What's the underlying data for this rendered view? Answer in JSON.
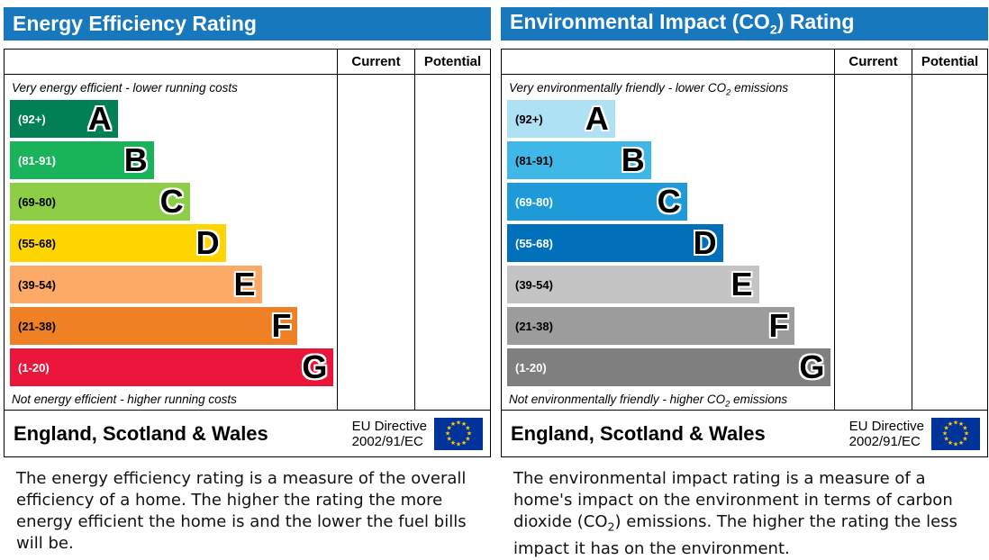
{
  "colors": {
    "header_bg": "#1878be",
    "border": "#000000",
    "flag_bg": "#003399",
    "flag_stars": "#ffcc00"
  },
  "chart_data": [
    {
      "type": "bar",
      "orientation": "horizontal",
      "title": "Energy Efficiency Rating",
      "columns": [
        "Current",
        "Potential"
      ],
      "current_value": "",
      "potential_value": "",
      "top_caption": "Very energy efficient - lower running costs",
      "bottom_caption": "Not energy efficient - higher running costs",
      "bands": [
        {
          "letter": "A",
          "range": "(92+)",
          "range_min": 92,
          "range_max": 100,
          "width_pct": 33,
          "color": "#008054",
          "label_color": "#ffffff"
        },
        {
          "letter": "B",
          "range": "(81-91)",
          "range_min": 81,
          "range_max": 91,
          "width_pct": 44,
          "color": "#19b459",
          "label_color": "#ffffff"
        },
        {
          "letter": "C",
          "range": "(69-80)",
          "range_min": 69,
          "range_max": 80,
          "width_pct": 55,
          "color": "#8dce46",
          "label_color": "#000000"
        },
        {
          "letter": "D",
          "range": "(55-68)",
          "range_min": 55,
          "range_max": 68,
          "width_pct": 66,
          "color": "#ffd500",
          "label_color": "#000000"
        },
        {
          "letter": "E",
          "range": "(39-54)",
          "range_min": 39,
          "range_max": 54,
          "width_pct": 77,
          "color": "#fcaa65",
          "label_color": "#000000"
        },
        {
          "letter": "F",
          "range": "(21-38)",
          "range_min": 21,
          "range_max": 38,
          "width_pct": 88,
          "color": "#ef8023",
          "label_color": "#000000"
        },
        {
          "letter": "G",
          "range": "(1-20)",
          "range_min": 1,
          "range_max": 20,
          "width_pct": 99,
          "color": "#e9153b",
          "label_color": "#ffffff"
        }
      ],
      "footer": {
        "region": "England, Scotland & Wales",
        "directive": [
          "EU Directive",
          "2002/91/EC"
        ]
      },
      "description": "The energy efficiency rating is a measure of the overall efficiency of a home. The higher the rating the more energy efficient the home is and the lower the fuel bills will be."
    },
    {
      "type": "bar",
      "orientation": "horizontal",
      "title_parts": {
        "pre": "Environmental Impact (CO",
        "sub": "2",
        "post": ") Rating"
      },
      "columns": [
        "Current",
        "Potential"
      ],
      "current_value": "",
      "potential_value": "",
      "top_caption_parts": {
        "pre": "Very environmentally friendly - lower CO",
        "sub": "2",
        "post": " emissions"
      },
      "bottom_caption_parts": {
        "pre": "Not environmentally friendly - higher CO",
        "sub": "2",
        "post": " emissions"
      },
      "bands": [
        {
          "letter": "A",
          "range": "(92+)",
          "range_min": 92,
          "range_max": 100,
          "width_pct": 33,
          "color": "#aee1f4",
          "label_color": "#000000"
        },
        {
          "letter": "B",
          "range": "(81-91)",
          "range_min": 81,
          "range_max": 91,
          "width_pct": 44,
          "color": "#3fb8e8",
          "label_color": "#000000"
        },
        {
          "letter": "C",
          "range": "(69-80)",
          "range_min": 69,
          "range_max": 80,
          "width_pct": 55,
          "color": "#1e9ad8",
          "label_color": "#ffffff"
        },
        {
          "letter": "D",
          "range": "(55-68)",
          "range_min": 55,
          "range_max": 68,
          "width_pct": 66,
          "color": "#0070ba",
          "label_color": "#ffffff"
        },
        {
          "letter": "E",
          "range": "(39-54)",
          "range_min": 39,
          "range_max": 54,
          "width_pct": 77,
          "color": "#c4c4c4",
          "label_color": "#000000"
        },
        {
          "letter": "F",
          "range": "(21-38)",
          "range_min": 21,
          "range_max": 38,
          "width_pct": 88,
          "color": "#9c9c9c",
          "label_color": "#000000"
        },
        {
          "letter": "G",
          "range": "(1-20)",
          "range_min": 1,
          "range_max": 20,
          "width_pct": 99,
          "color": "#7f7f7f",
          "label_color": "#ffffff"
        }
      ],
      "footer": {
        "region": "England, Scotland & Wales",
        "directive": [
          "EU Directive",
          "2002/91/EC"
        ]
      },
      "description_parts": {
        "pre": "The environmental impact rating is a measure of a home's impact on the environment in terms of carbon dioxide (CO",
        "sub": "2",
        "post": ") emissions. The higher the rating the less impact it has on the environment."
      }
    }
  ]
}
